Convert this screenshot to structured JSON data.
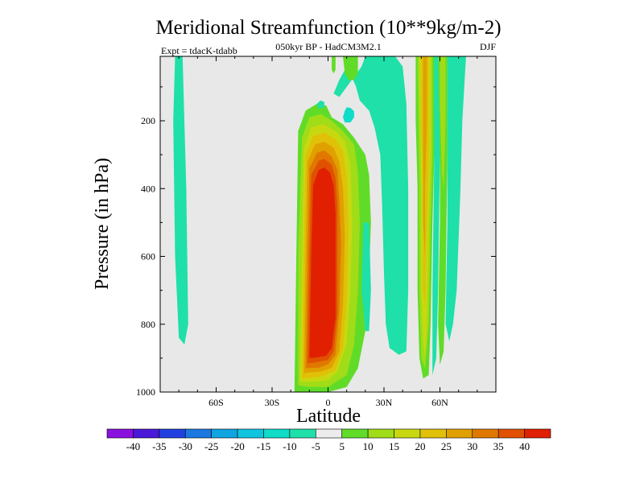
{
  "chart_data": {
    "type": "contour",
    "title": "Meridional Streamfunction (10**9kg/m-2)",
    "subtitle": "050kyr BP - HadCM3M2.1",
    "left_label": "Expt = tdacK-tdabb",
    "right_label": "DJF",
    "xlabel": "Latitude",
    "ylabel": "Pressure (in hPa)",
    "xlim": [
      -90,
      90
    ],
    "ylim": [
      1000,
      10
    ],
    "x_ticks": [
      {
        "value": -60,
        "label": "60S"
      },
      {
        "value": -30,
        "label": "30S"
      },
      {
        "value": 0,
        "label": "0"
      },
      {
        "value": 30,
        "label": "30N"
      },
      {
        "value": 60,
        "label": "60N"
      }
    ],
    "y_ticks": [
      {
        "value": 200,
        "label": "200"
      },
      {
        "value": 400,
        "label": "400"
      },
      {
        "value": 600,
        "label": "600"
      },
      {
        "value": 800,
        "label": "800"
      },
      {
        "value": 1000,
        "label": "1000"
      }
    ],
    "levels": [
      -40,
      -35,
      -30,
      -25,
      -20,
      -15,
      -10,
      -5,
      5,
      10,
      15,
      20,
      25,
      30,
      35,
      40
    ],
    "level_labels": [
      "-40",
      "-35",
      "-30",
      "-25",
      "-20",
      "-15",
      "-10",
      "-5",
      "5",
      "10",
      "15",
      "20",
      "25",
      "30",
      "35",
      "40"
    ],
    "colors": [
      "#8a10e0",
      "#4a18d8",
      "#2040e0",
      "#1a78e0",
      "#10a4e0",
      "#10c4e0",
      "#10dcc8",
      "#1ee0a8",
      "#ececec",
      "#60dc28",
      "#a0dc18",
      "#c8d810",
      "#e0c008",
      "#e0a000",
      "#e07800",
      "#e05000",
      "#e02000"
    ],
    "background_color": "#e8e8e8",
    "features": [
      {
        "name": "southern-negative-band",
        "level": -5,
        "points": [
          [
            -82,
            10
          ],
          [
            -78,
            10
          ],
          [
            -76,
            400
          ],
          [
            -75,
            800
          ],
          [
            -77,
            860
          ],
          [
            -80,
            840
          ],
          [
            -82,
            600
          ],
          [
            -83,
            200
          ]
        ]
      },
      {
        "name": "main-cell-5",
        "level": 5,
        "points": [
          [
            -18,
            1000
          ],
          [
            -17,
            600
          ],
          [
            -16,
            230
          ],
          [
            -12,
            170
          ],
          [
            -6,
            150
          ],
          [
            -1,
            155
          ],
          [
            2,
            190
          ],
          [
            8,
            210
          ],
          [
            14,
            250
          ],
          [
            20,
            300
          ],
          [
            22,
            360
          ],
          [
            23,
            500
          ],
          [
            22,
            650
          ],
          [
            20,
            820
          ],
          [
            16,
            930
          ],
          [
            10,
            985
          ],
          [
            0,
            1000
          ]
        ]
      },
      {
        "name": "main-cell-10",
        "level": 10,
        "points": [
          [
            -16,
            980
          ],
          [
            -16,
            600
          ],
          [
            -14,
            250
          ],
          [
            -10,
            190
          ],
          [
            -4,
            180
          ],
          [
            2,
            200
          ],
          [
            8,
            230
          ],
          [
            14,
            270
          ],
          [
            16,
            350
          ],
          [
            17,
            500
          ],
          [
            16,
            700
          ],
          [
            14,
            860
          ],
          [
            10,
            950
          ],
          [
            0,
            985
          ],
          [
            -10,
            985
          ]
        ]
      },
      {
        "name": "main-cell-15",
        "level": 15,
        "points": [
          [
            -15,
            970
          ],
          [
            -14,
            600
          ],
          [
            -13,
            280
          ],
          [
            -9,
            220
          ],
          [
            -3,
            210
          ],
          [
            4,
            230
          ],
          [
            9,
            260
          ],
          [
            12,
            330
          ],
          [
            13,
            500
          ],
          [
            12,
            700
          ],
          [
            10,
            860
          ],
          [
            5,
            940
          ],
          [
            0,
            965
          ],
          [
            -8,
            970
          ]
        ]
      },
      {
        "name": "main-cell-20",
        "level": 20,
        "points": [
          [
            -14,
            960
          ],
          [
            -13,
            600
          ],
          [
            -12,
            300
          ],
          [
            -8,
            245
          ],
          [
            -2,
            235
          ],
          [
            4,
            255
          ],
          [
            8,
            290
          ],
          [
            10,
            370
          ],
          [
            11,
            520
          ],
          [
            10,
            720
          ],
          [
            8,
            870
          ],
          [
            4,
            935
          ],
          [
            -4,
            955
          ],
          [
            -10,
            958
          ]
        ]
      },
      {
        "name": "main-cell-25",
        "level": 25,
        "points": [
          [
            -13,
            945
          ],
          [
            -12,
            600
          ],
          [
            -11,
            320
          ],
          [
            -7,
            270
          ],
          [
            -2,
            262
          ],
          [
            3,
            280
          ],
          [
            6,
            320
          ],
          [
            8,
            400
          ],
          [
            9,
            540
          ],
          [
            8,
            740
          ],
          [
            6,
            880
          ],
          [
            2,
            928
          ],
          [
            -4,
            940
          ],
          [
            -10,
            942
          ]
        ]
      },
      {
        "name": "main-cell-30",
        "level": 30,
        "points": [
          [
            -12,
            930
          ],
          [
            -11,
            600
          ],
          [
            -10,
            340
          ],
          [
            -6,
            295
          ],
          [
            -2,
            287
          ],
          [
            2,
            305
          ],
          [
            5,
            345
          ],
          [
            6,
            430
          ],
          [
            7,
            560
          ],
          [
            6,
            760
          ],
          [
            4,
            890
          ],
          [
            0,
            918
          ],
          [
            -5,
            928
          ]
        ]
      },
      {
        "name": "main-cell-35",
        "level": 35,
        "points": [
          [
            -11,
            915
          ],
          [
            -10,
            600
          ],
          [
            -9,
            360
          ],
          [
            -5,
            318
          ],
          [
            -2,
            312
          ],
          [
            2,
            330
          ],
          [
            4,
            370
          ],
          [
            5,
            450
          ],
          [
            5,
            580
          ],
          [
            5,
            770
          ],
          [
            3,
            880
          ],
          [
            0,
            905
          ],
          [
            -6,
            912
          ]
        ]
      },
      {
        "name": "main-cell-40",
        "level": 40,
        "points": [
          [
            -10,
            900
          ],
          [
            -9,
            600
          ],
          [
            -8,
            390
          ],
          [
            -5,
            345
          ],
          [
            -2,
            338
          ],
          [
            1,
            352
          ],
          [
            3,
            390
          ],
          [
            4,
            470
          ],
          [
            4,
            600
          ],
          [
            4,
            780
          ],
          [
            2,
            870
          ],
          [
            -1,
            893
          ],
          [
            -6,
            898
          ]
        ]
      },
      {
        "name": "upper-negative-region",
        "level": -5,
        "points": [
          [
            3,
            120
          ],
          [
            6,
            80
          ],
          [
            9,
            50
          ],
          [
            12,
            60
          ],
          [
            15,
            100
          ],
          [
            17,
            140
          ],
          [
            22,
            170
          ],
          [
            25,
            220
          ],
          [
            28,
            300
          ],
          [
            29,
            450
          ],
          [
            30,
            650
          ],
          [
            31,
            800
          ],
          [
            33,
            870
          ],
          [
            38,
            890
          ],
          [
            42,
            880
          ],
          [
            43,
            700
          ],
          [
            43,
            400
          ],
          [
            42,
            150
          ],
          [
            40,
            40
          ],
          [
            36,
            10
          ],
          [
            20,
            10
          ],
          [
            18,
            40
          ],
          [
            14,
            70
          ],
          [
            10,
            100
          ],
          [
            6,
            130
          ]
        ]
      },
      {
        "name": "upper-negative-core",
        "level": -10,
        "points": [
          [
            8,
            190
          ],
          [
            9,
            170
          ],
          [
            10,
            160
          ],
          [
            12,
            162
          ],
          [
            14,
            172
          ],
          [
            14,
            190
          ],
          [
            12,
            205
          ],
          [
            9,
            205
          ]
        ]
      },
      {
        "name": "upper-left-speck",
        "level": -5,
        "points": [
          [
            -6,
            150
          ],
          [
            -4,
            140
          ],
          [
            -2,
            145
          ],
          [
            -2,
            160
          ],
          [
            -5,
            165
          ]
        ]
      },
      {
        "name": "mid-green-strip",
        "level": 5,
        "points": [
          [
            2,
            10
          ],
          [
            4,
            10
          ],
          [
            4,
            50
          ],
          [
            3,
            60
          ],
          [
            2,
            50
          ]
        ]
      },
      {
        "name": "upper-green-strip",
        "level": 5,
        "points": [
          [
            8,
            10
          ],
          [
            16,
            10
          ],
          [
            16,
            60
          ],
          [
            14,
            80
          ],
          [
            11,
            80
          ],
          [
            9,
            60
          ]
        ]
      },
      {
        "name": "mid-right-negative",
        "level": -5,
        "points": [
          [
            19,
            500
          ],
          [
            22,
            500
          ],
          [
            23,
            700
          ],
          [
            22,
            820
          ],
          [
            20,
            820
          ],
          [
            18,
            700
          ]
        ]
      },
      {
        "name": "band-50n-5",
        "level": 5,
        "points": [
          [
            47,
            10
          ],
          [
            57,
            10
          ],
          [
            57,
            300
          ],
          [
            56,
            500
          ],
          [
            55,
            800
          ],
          [
            54,
            950
          ],
          [
            51,
            960
          ],
          [
            49,
            900
          ],
          [
            48,
            700
          ],
          [
            48,
            400
          ],
          [
            47,
            200
          ]
        ]
      },
      {
        "name": "band-50n-10",
        "level": 10,
        "points": [
          [
            48,
            10
          ],
          [
            56,
            10
          ],
          [
            56,
            300
          ],
          [
            55,
            500
          ],
          [
            54,
            800
          ],
          [
            52,
            930
          ],
          [
            50,
            900
          ],
          [
            49,
            700
          ],
          [
            49,
            400
          ]
        ]
      },
      {
        "name": "band-50n-15",
        "level": 15,
        "points": [
          [
            49,
            10
          ],
          [
            55,
            10
          ],
          [
            55,
            300
          ],
          [
            54,
            500
          ],
          [
            53,
            800
          ],
          [
            52,
            900
          ],
          [
            51,
            850
          ],
          [
            50,
            700
          ],
          [
            50,
            400
          ]
        ]
      },
      {
        "name": "band-50n-20",
        "level": 20,
        "points": [
          [
            50,
            10
          ],
          [
            54,
            10
          ],
          [
            54,
            300
          ],
          [
            53,
            500
          ],
          [
            52,
            750
          ],
          [
            51,
            700
          ],
          [
            51,
            400
          ],
          [
            50,
            200
          ]
        ]
      },
      {
        "name": "band-50n-25",
        "level": 25,
        "points": [
          [
            51,
            10
          ],
          [
            53,
            10
          ],
          [
            53,
            200
          ],
          [
            52,
            400
          ],
          [
            52,
            600
          ],
          [
            51,
            500
          ],
          [
            51,
            200
          ]
        ]
      },
      {
        "name": "band-60n-negative",
        "level": -5,
        "points": [
          [
            57,
            10
          ],
          [
            60,
            10
          ],
          [
            60,
            300
          ],
          [
            59,
            700
          ],
          [
            58,
            900
          ],
          [
            56,
            950
          ],
          [
            56,
            700
          ],
          [
            57,
            300
          ]
        ]
      },
      {
        "name": "band-60n-5",
        "level": 5,
        "points": [
          [
            59,
            10
          ],
          [
            64,
            10
          ],
          [
            64,
            300
          ],
          [
            63,
            700
          ],
          [
            62,
            880
          ],
          [
            60,
            920
          ],
          [
            59,
            800
          ],
          [
            60,
            500
          ],
          [
            60,
            300
          ]
        ]
      },
      {
        "name": "band-60n-10",
        "level": 10,
        "points": [
          [
            60,
            10
          ],
          [
            63,
            10
          ],
          [
            63,
            200
          ],
          [
            62,
            400
          ],
          [
            61,
            350
          ],
          [
            60,
            150
          ]
        ]
      },
      {
        "name": "band-70n-negative",
        "level": -5,
        "points": [
          [
            64,
            10
          ],
          [
            74,
            10
          ],
          [
            72,
            200
          ],
          [
            71,
            400
          ],
          [
            70,
            550
          ],
          [
            69,
            700
          ],
          [
            67,
            800
          ],
          [
            65,
            850
          ],
          [
            63,
            800
          ],
          [
            64,
            500
          ],
          [
            64,
            250
          ]
        ]
      }
    ]
  }
}
